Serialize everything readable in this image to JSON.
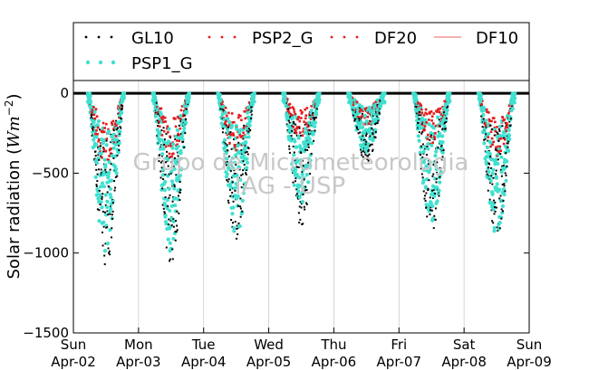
{
  "chart_data": {
    "type": "scatter",
    "title": "",
    "ylabel": "Solar radiation (Wm^-2)",
    "ylabel_plain": "Solar radiation (",
    "ylabel_unit_base": "Wm",
    "ylabel_unit_exp": "−2",
    "ylabel_close": ")",
    "xlabel": "",
    "ylim": [
      -1500,
      80
    ],
    "xlim": [
      0,
      7
    ],
    "yticks": [
      0,
      -500,
      -1000,
      -1500
    ],
    "ytick_labels": [
      "0",
      "−500",
      "−1000",
      "−1500"
    ],
    "xticks": [
      0,
      1,
      2,
      3,
      4,
      5,
      6,
      7
    ],
    "xtick_labels": [
      [
        "Sun",
        "Apr-02"
      ],
      [
        "Mon",
        "Apr-03"
      ],
      [
        "Tue",
        "Apr-04"
      ],
      [
        "Wed",
        "Apr-05"
      ],
      [
        "Thu",
        "Apr-06"
      ],
      [
        "Fri",
        "Apr-07"
      ],
      [
        "Sat",
        "Apr-08"
      ],
      [
        "Sun",
        "Apr-09"
      ]
    ],
    "grid": "vertical",
    "legend_position": "top",
    "series": [
      {
        "name": "GL10",
        "style": "dotted-markers",
        "color": "#000000"
      },
      {
        "name": "PSP2_G",
        "style": "dotted-markers",
        "color": "#e41a1c"
      },
      {
        "name": "DF20",
        "style": "dotted-markers",
        "color": "#e41a1c"
      },
      {
        "name": "DF10",
        "style": "line",
        "color": "#f08080"
      },
      {
        "name": "PSP1_G",
        "style": "dotted-markers",
        "color": "#40e0d0"
      }
    ],
    "days": [
      {
        "day": 0,
        "gl10_min": -1090,
        "psp1_min": -1010,
        "psp2_min": -440
      },
      {
        "day": 1,
        "gl10_min": -1070,
        "psp1_min": -1000,
        "psp2_min": -410
      },
      {
        "day": 2,
        "gl10_min": -960,
        "psp1_min": -920,
        "psp2_min": -380
      },
      {
        "day": 3,
        "gl10_min": -830,
        "psp1_min": -740,
        "psp2_min": -300
      },
      {
        "day": 4,
        "gl10_min": -440,
        "psp1_min": -400,
        "psp2_min": -220
      },
      {
        "day": 5,
        "gl10_min": -880,
        "psp1_min": -820,
        "psp2_min": -320
      },
      {
        "day": 6,
        "gl10_min": -920,
        "psp1_min": -890,
        "psp2_min": -400
      }
    ]
  },
  "watermark": {
    "line1": "Grupo de Micrometeorologia",
    "line2": "IAG - USP"
  },
  "colors": {
    "gl10": "#000000",
    "psp2": "#e41a1c",
    "df20": "#e41a1c",
    "df10": "#f08080",
    "psp1": "#40e0d0",
    "grid": "#cccccc"
  }
}
